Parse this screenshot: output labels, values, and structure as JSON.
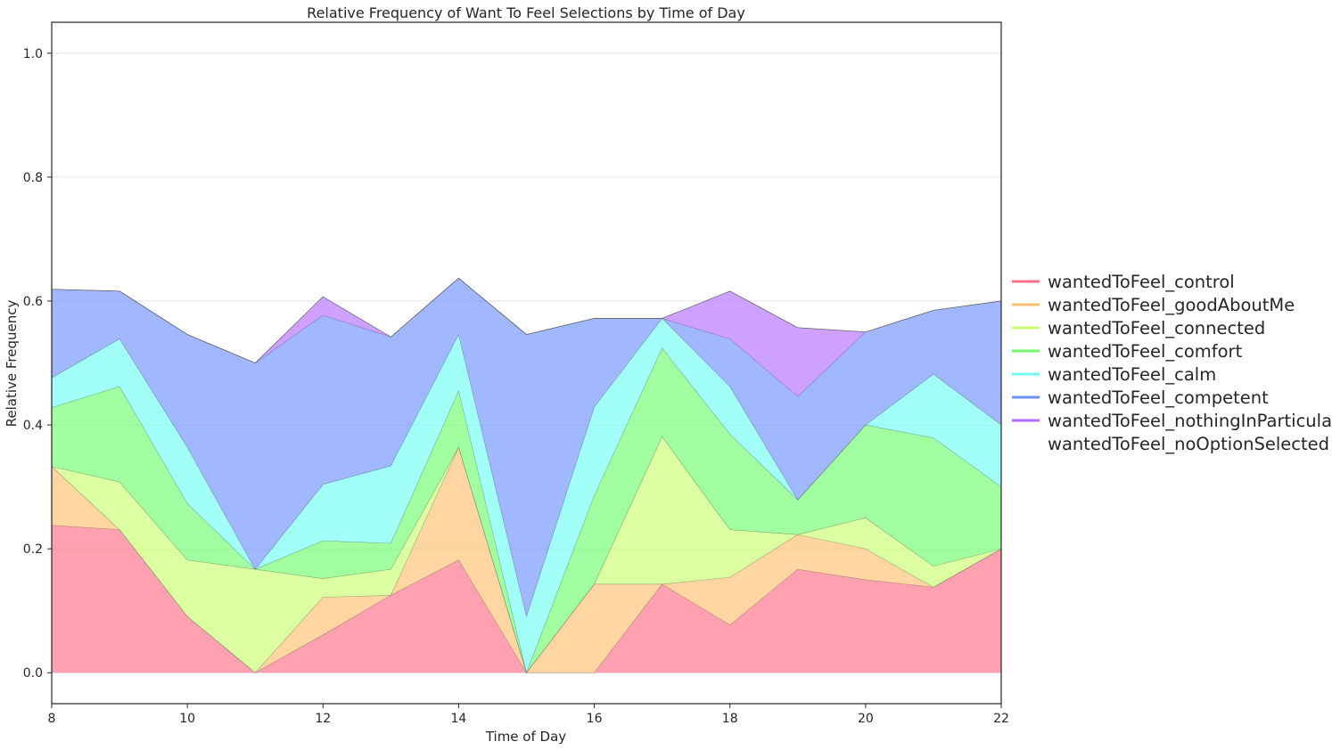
{
  "chart_data": {
    "type": "area",
    "stacked": true,
    "title": "Relative Frequency of Want To Feel Selections by Time of Day",
    "xlabel": "Time of Day",
    "ylabel": "Relative Frequency",
    "xlim": [
      8,
      22
    ],
    "ylim": [
      -0.05,
      1.05
    ],
    "xticks": [
      8,
      10,
      12,
      14,
      16,
      18,
      20,
      22
    ],
    "yticks": [
      "0.0",
      "0.2",
      "0.4",
      "0.6",
      "0.8",
      "1.0"
    ],
    "grid": "horizontal",
    "legend_position": "right",
    "x": [
      8,
      9,
      10,
      11,
      12,
      13,
      14,
      15,
      16,
      17,
      18,
      19,
      20,
      21,
      22
    ],
    "series": [
      {
        "name": "wantedToFeel_control",
        "color": "#ff6e86",
        "values": [
          0.238,
          0.231,
          0.091,
          0.0,
          0.061,
          0.125,
          0.182,
          0.0,
          0.0,
          0.143,
          0.077,
          0.167,
          0.15,
          0.138,
          0.2
        ]
      },
      {
        "name": "wantedToFeel_goodAboutMe",
        "color": "#ffbf6e",
        "values": [
          0.095,
          0.0,
          0.0,
          0.0,
          0.061,
          0.0,
          0.182,
          0.0,
          0.143,
          0.0,
          0.077,
          0.056,
          0.05,
          0.0,
          0.0
        ]
      },
      {
        "name": "wantedToFeel_connected",
        "color": "#c8ff6e",
        "values": [
          0.0,
          0.077,
          0.091,
          0.167,
          0.03,
          0.042,
          0.0,
          0.0,
          0.0,
          0.238,
          0.077,
          0.0,
          0.05,
          0.034,
          0.0
        ]
      },
      {
        "name": "wantedToFeel_comfort",
        "color": "#6eff6e",
        "values": [
          0.095,
          0.154,
          0.091,
          0.0,
          0.061,
          0.042,
          0.091,
          0.0,
          0.143,
          0.143,
          0.154,
          0.056,
          0.15,
          0.207,
          0.1
        ]
      },
      {
        "name": "wantedToFeel_calm",
        "color": "#6efff2",
        "values": [
          0.048,
          0.077,
          0.091,
          0.0,
          0.091,
          0.125,
          0.091,
          0.091,
          0.143,
          0.048,
          0.077,
          0.0,
          0.0,
          0.103,
          0.1
        ]
      },
      {
        "name": "wantedToFeel_competent",
        "color": "#6e90ff",
        "values": [
          0.143,
          0.077,
          0.182,
          0.333,
          0.273,
          0.208,
          0.091,
          0.455,
          0.143,
          0.0,
          0.077,
          0.167,
          0.15,
          0.103,
          0.2
        ]
      },
      {
        "name": "wantedToFeel_nothingInParticular",
        "color": "#b46eff",
        "values": [
          0.0,
          0.0,
          0.0,
          0.0,
          0.03,
          0.0,
          0.0,
          0.0,
          0.0,
          0.0,
          0.077,
          0.111,
          0.0,
          0.0,
          0.0
        ]
      },
      {
        "name": "wantedToFeel_noOptionSelected",
        "color": "#ffffff",
        "values": [
          0,
          0,
          0,
          0,
          0,
          0,
          0,
          0,
          0,
          0,
          0,
          0,
          0,
          0,
          0
        ]
      }
    ]
  }
}
